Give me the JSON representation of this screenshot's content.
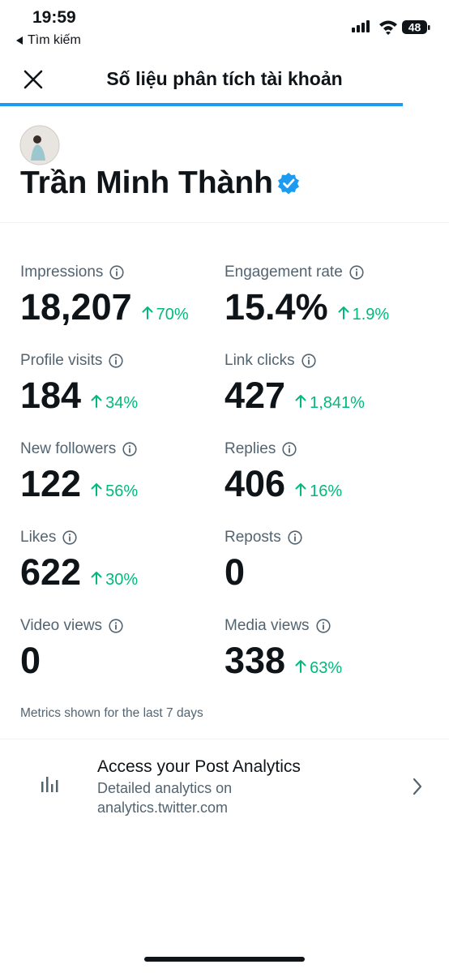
{
  "status": {
    "time": "19:59",
    "back": "Tìm kiếm",
    "battery": "48"
  },
  "header": {
    "title": "Số liệu phân tích tài khoản"
  },
  "profile": {
    "name": "Trần Minh Thành"
  },
  "metrics": [
    {
      "label": "Impressions",
      "value": "18,207",
      "change": "70%"
    },
    {
      "label": "Engagement rate",
      "value": "15.4%",
      "change": "1.9%"
    },
    {
      "label": "Profile visits",
      "value": "184",
      "change": "34%"
    },
    {
      "label": "Link clicks",
      "value": "427",
      "change": "1,841%"
    },
    {
      "label": "New followers",
      "value": "122",
      "change": "56%"
    },
    {
      "label": "Replies",
      "value": "406",
      "change": "16%"
    },
    {
      "label": "Likes",
      "value": "622",
      "change": "30%"
    },
    {
      "label": "Reposts",
      "value": "0"
    },
    {
      "label": "Video views",
      "value": "0"
    },
    {
      "label": "Media views",
      "value": "338",
      "change": "63%"
    }
  ],
  "note": "Metrics shown for the last 7 days",
  "analytics": {
    "title": "Access your Post Analytics",
    "subtitle": [
      "Detailed analytics on",
      "analytics.twitter.com"
    ]
  }
}
